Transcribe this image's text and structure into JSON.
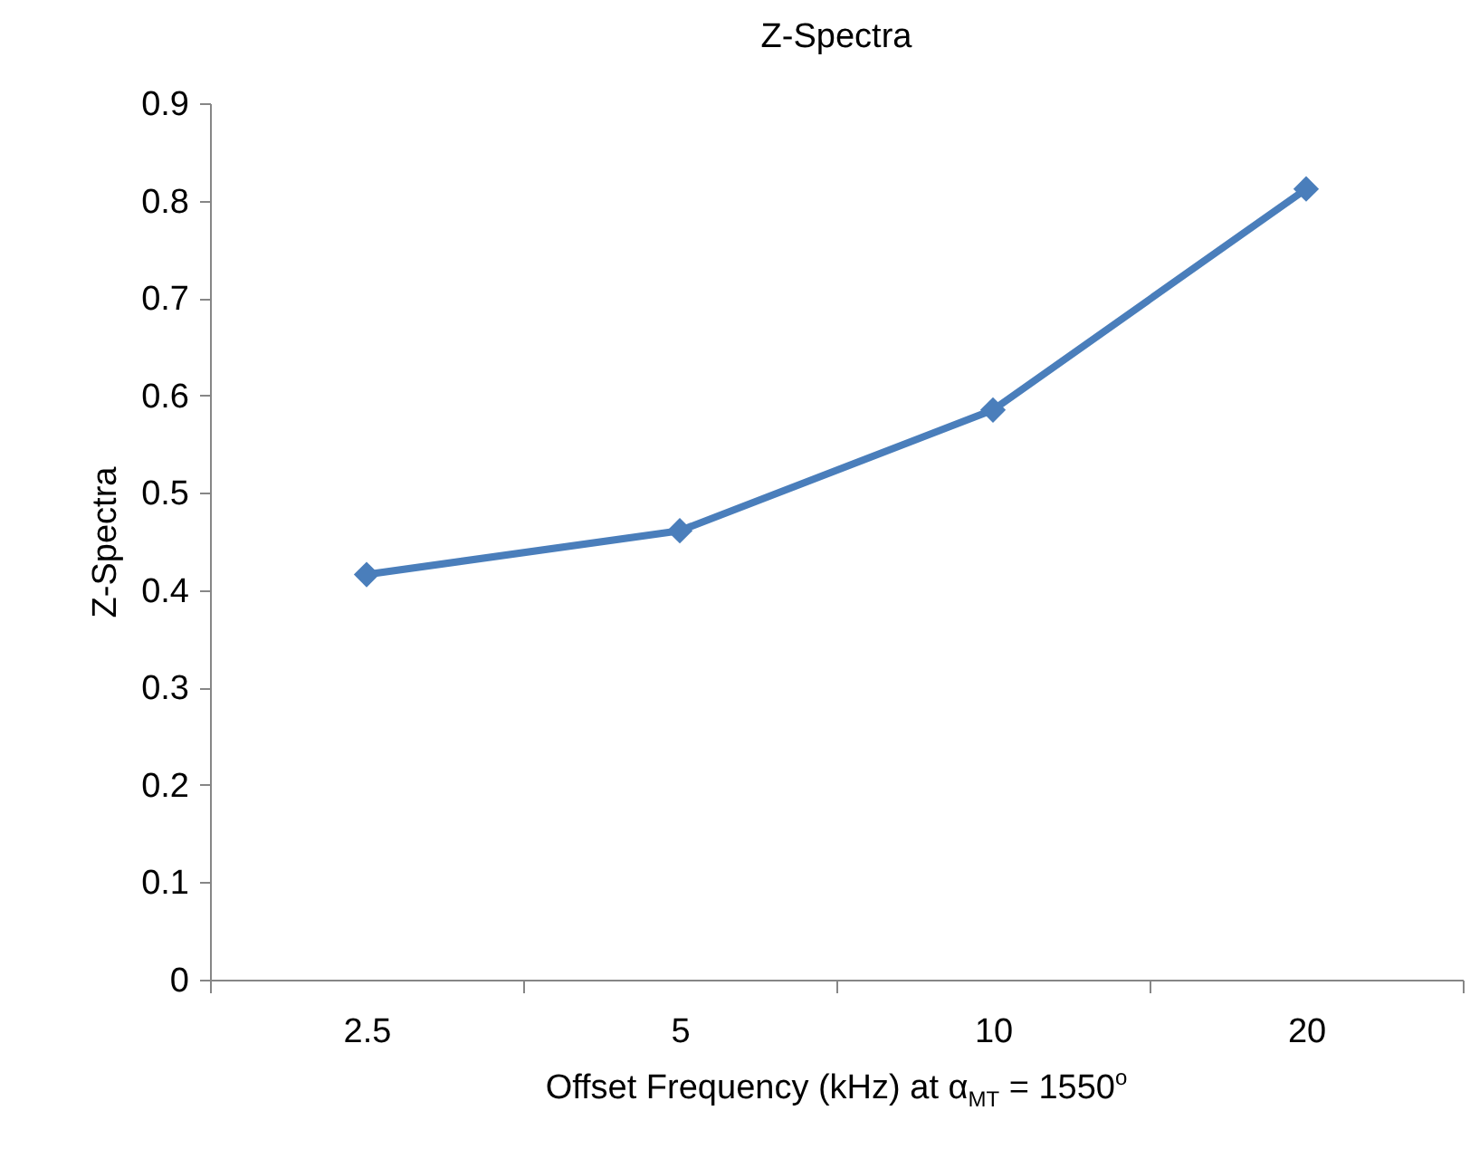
{
  "chart_data": {
    "type": "line",
    "title": "Z-Spectra",
    "xlabel": "Offset Frequency (kHz) at α$_{MT}$ = 1550$^{o}$",
    "ylabel": "Z-Spectra",
    "categories": [
      "2.5",
      "5",
      "10",
      "20"
    ],
    "series": [
      {
        "color": "#4a7ebb",
        "values": [
          0.416,
          0.461,
          0.585,
          0.812
        ]
      }
    ],
    "ylim": [
      0,
      0.9
    ],
    "yticks": [
      0,
      0.1,
      0.2,
      0.3,
      0.4,
      0.5,
      0.6,
      0.7,
      0.8,
      0.9
    ],
    "grid": false,
    "marker": "diamond",
    "line_style": "solid"
  }
}
